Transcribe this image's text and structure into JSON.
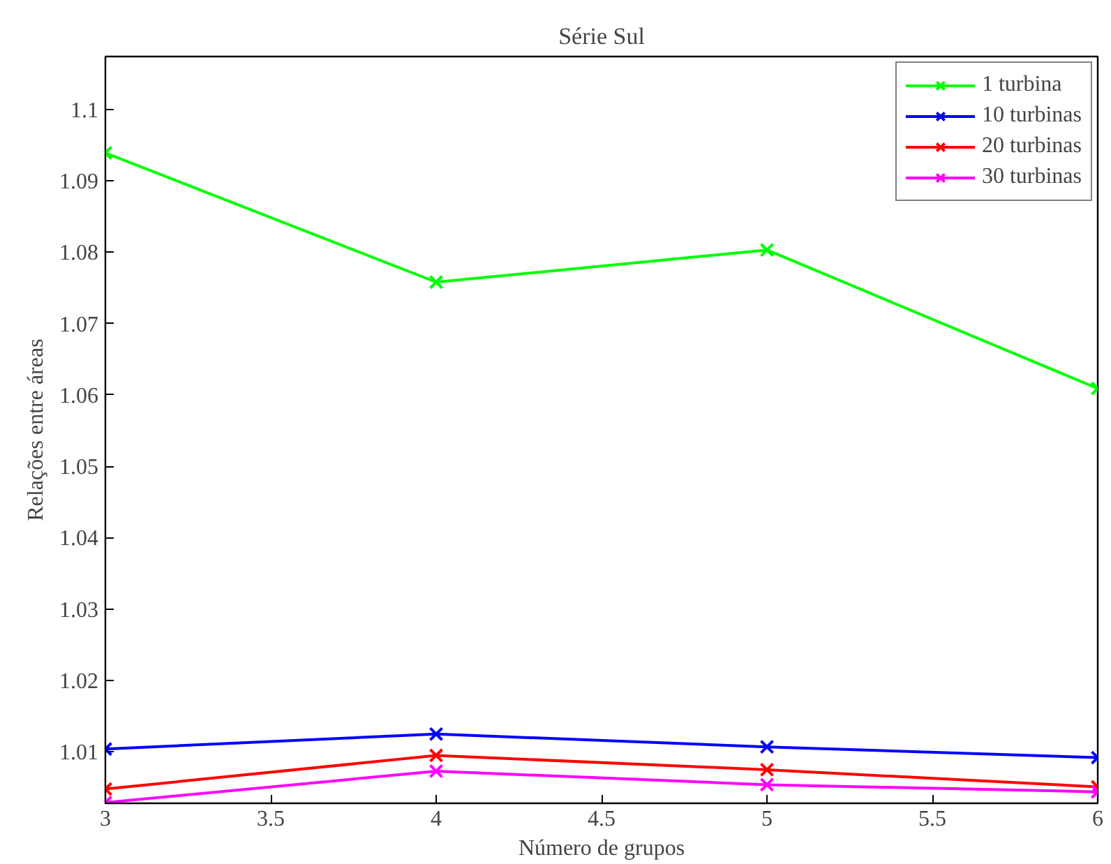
{
  "chart_data": {
    "type": "line",
    "title": "Série Sul",
    "xlabel": "Número de grupos",
    "ylabel": "Relações entre áreas",
    "x": [
      3,
      4,
      5,
      6
    ],
    "series": [
      {
        "name": "1 turbina",
        "color": "#00ff00",
        "values": [
          1.0939,
          1.0758,
          1.0803,
          1.0609
        ]
      },
      {
        "name": "10 turbinas",
        "color": "#0000ff",
        "values": [
          1.0104,
          1.0125,
          1.0107,
          1.0092
        ]
      },
      {
        "name": "20 turbinas",
        "color": "#ff0000",
        "values": [
          1.0048,
          1.0095,
          1.0075,
          1.0051
        ]
      },
      {
        "name": "30 turbinas",
        "color": "#ff00ff",
        "values": [
          1.0029,
          1.0073,
          1.0054,
          1.0044
        ]
      }
    ],
    "xlim": [
      3,
      6
    ],
    "xticks": [
      3,
      3.5,
      4,
      4.5,
      5,
      5.5,
      6
    ],
    "ylim": [
      1.0028,
      1.1074
    ],
    "yticks": [
      1.01,
      1.02,
      1.03,
      1.04,
      1.05,
      1.06,
      1.07,
      1.08,
      1.09,
      {
        "value": 1.1,
        "label": "1.1"
      }
    ],
    "grid": false,
    "legend": "top right",
    "marker": "cross",
    "line_style": "solid"
  }
}
